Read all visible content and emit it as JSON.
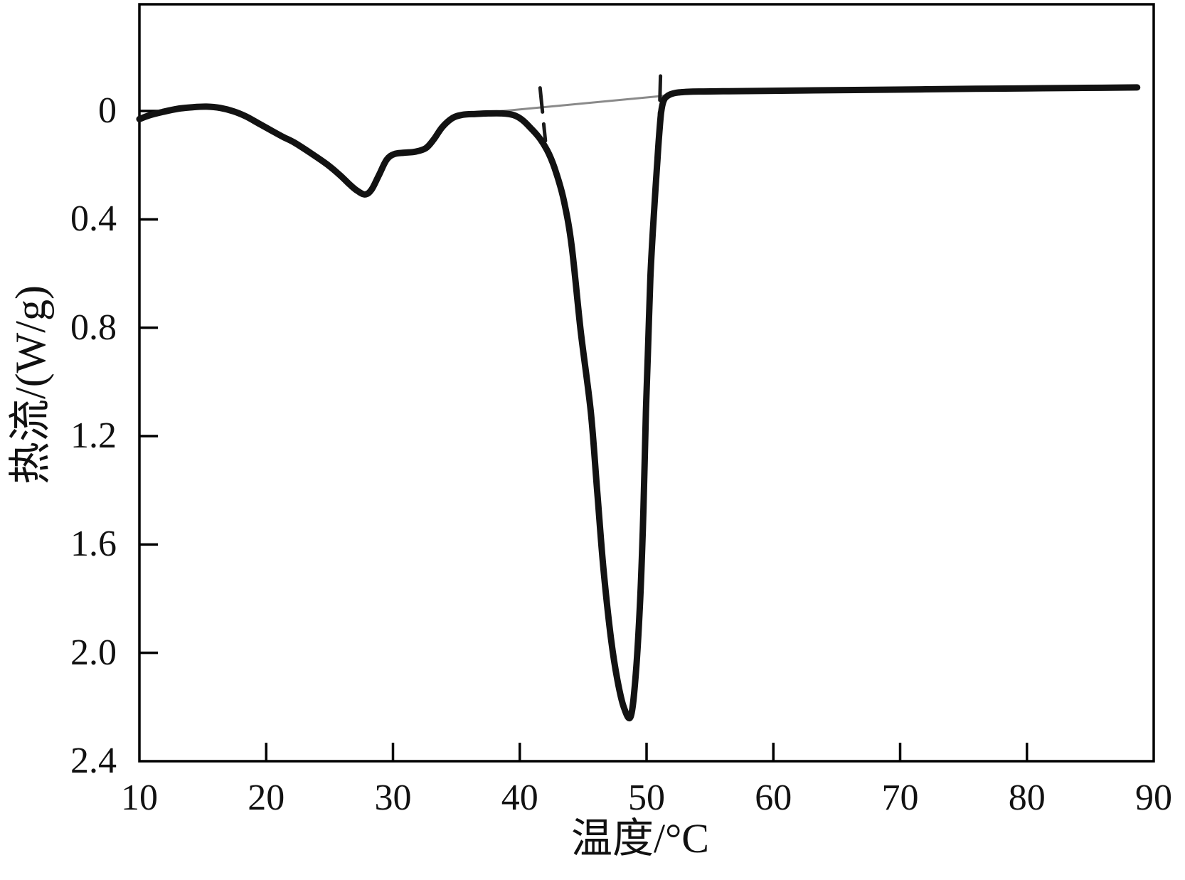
{
  "page": {
    "background": "#ffffff"
  },
  "chart_data": {
    "type": "line",
    "title": "",
    "xlabel": "温度/°C",
    "ylabel": "热流/(W/g)",
    "grid": false,
    "legend": "none",
    "axis_color": "#000000",
    "x_range": [
      10,
      90
    ],
    "y_range_displayed": [
      -0.394,
      2.4
    ],
    "y_axis_note": "heat-flow value increases downward (endothermic peaks point down); labels 0 to 2.4 top to bottom",
    "x_ticks": [
      10,
      20,
      30,
      40,
      50,
      60,
      70,
      80,
      90
    ],
    "x_tick_marks": [
      20,
      30,
      40,
      50,
      60,
      70,
      80
    ],
    "y_ticks": [
      0,
      0.4,
      0.8,
      1.2,
      1.6,
      2.0,
      2.4
    ],
    "y_tick_marks": [
      0,
      0.4,
      0.8,
      1.2,
      1.6,
      2.0
    ],
    "y_tick_labels": [
      "0",
      "0.4",
      "0.8",
      "1.2",
      "1.6",
      "2.0",
      "2.4"
    ],
    "peaks": [
      {
        "temperature": 27.8,
        "heat_flow": 0.31,
        "kind": "minor endotherm"
      },
      {
        "temperature": 48.7,
        "heat_flow": 2.23,
        "kind": "main endotherm"
      }
    ],
    "series": [
      {
        "name": "extrapolated-baseline",
        "color": "#8a8a8a",
        "stroke_width": 3,
        "smooth": false,
        "dashed": false,
        "points": [
          [
            37.8,
            0.004
          ],
          [
            53.4,
            -0.065
          ]
        ]
      },
      {
        "name": "onset-tangent-mark",
        "color": "#1a1a1a",
        "stroke_width": 5,
        "smooth": false,
        "dashed": true,
        "points": [
          [
            41.6,
            -0.085
          ],
          [
            42.02,
            0.11
          ]
        ]
      },
      {
        "name": "endset-tangent-mark",
        "color": "#1a1a1a",
        "stroke_width": 5,
        "smooth": false,
        "dashed": true,
        "points": [
          [
            51.1,
            -0.129
          ],
          [
            50.93,
            0.175
          ]
        ]
      },
      {
        "name": "dsc-curve",
        "color": "#121212",
        "stroke_width": 9,
        "smooth": true,
        "dashed": false,
        "points": [
          [
            10,
            0.03
          ],
          [
            10.8,
            0.016
          ],
          [
            11.8,
            0.004
          ],
          [
            13,
            -0.008
          ],
          [
            14.2,
            -0.014
          ],
          [
            15.3,
            -0.016
          ],
          [
            16.4,
            -0.011
          ],
          [
            17.4,
            0.001
          ],
          [
            18.4,
            0.02
          ],
          [
            19.4,
            0.046
          ],
          [
            20.4,
            0.072
          ],
          [
            21.3,
            0.095
          ],
          [
            22.2,
            0.116
          ],
          [
            23.5,
            0.155
          ],
          [
            24.8,
            0.197
          ],
          [
            25.8,
            0.236
          ],
          [
            26.6,
            0.272
          ],
          [
            27.2,
            0.295
          ],
          [
            27.8,
            0.308
          ],
          [
            28.3,
            0.291
          ],
          [
            28.9,
            0.236
          ],
          [
            29.5,
            0.18
          ],
          [
            30.1,
            0.159
          ],
          [
            30.9,
            0.154
          ],
          [
            31.8,
            0.15
          ],
          [
            32.6,
            0.137
          ],
          [
            33.2,
            0.106
          ],
          [
            33.9,
            0.059
          ],
          [
            34.7,
            0.026
          ],
          [
            35.5,
            0.014
          ],
          [
            36.5,
            0.011
          ],
          [
            37.5,
            0.009
          ],
          [
            38.6,
            0.009
          ],
          [
            39.5,
            0.015
          ],
          [
            40.2,
            0.033
          ],
          [
            40.9,
            0.065
          ],
          [
            41.6,
            0.103
          ],
          [
            42.3,
            0.158
          ],
          [
            42.9,
            0.232
          ],
          [
            43.5,
            0.335
          ],
          [
            44.1,
            0.5
          ],
          [
            44.8,
            0.81
          ],
          [
            45.6,
            1.11
          ],
          [
            46.1,
            1.4
          ],
          [
            46.6,
            1.69
          ],
          [
            47.2,
            1.95
          ],
          [
            47.7,
            2.1
          ],
          [
            48.2,
            2.2
          ],
          [
            48.75,
            2.235
          ],
          [
            49.15,
            2.08
          ],
          [
            49.5,
            1.8
          ],
          [
            49.7,
            1.55
          ],
          [
            49.85,
            1.3
          ],
          [
            49.95,
            1.11
          ],
          [
            50.1,
            0.9
          ],
          [
            50.3,
            0.62
          ],
          [
            50.5,
            0.44
          ],
          [
            50.7,
            0.29
          ],
          [
            50.85,
            0.185
          ],
          [
            51,
            0.085
          ],
          [
            51.15,
            0.005
          ],
          [
            51.35,
            -0.038
          ],
          [
            51.7,
            -0.057
          ],
          [
            52.3,
            -0.067
          ],
          [
            53.3,
            -0.071
          ],
          [
            54.5,
            -0.072
          ],
          [
            56.5,
            -0.073
          ],
          [
            60,
            -0.0745
          ],
          [
            64,
            -0.0765
          ],
          [
            68,
            -0.078
          ],
          [
            72,
            -0.08
          ],
          [
            76,
            -0.082
          ],
          [
            80,
            -0.0835
          ],
          [
            84,
            -0.085
          ],
          [
            88.7,
            -0.087
          ]
        ]
      }
    ]
  }
}
